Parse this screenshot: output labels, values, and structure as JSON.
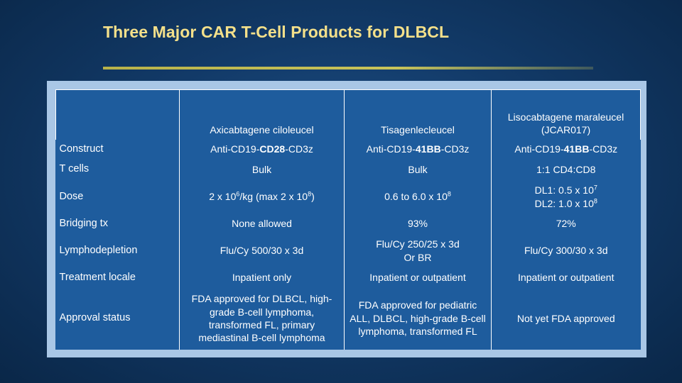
{
  "slide": {
    "title": "Three Major CAR T-Cell Products for DLBCL"
  },
  "table": {
    "columns": [
      "",
      "Axicabtagene ciloleucel",
      "Tisagenlecleucel",
      "Lisocabtagene maraleucel (JCAR017)"
    ],
    "rows": {
      "construct": {
        "label": "Construct",
        "c1_pre": "Anti-CD19-",
        "c1_bold": "CD28",
        "c1_post": "-CD3z",
        "c2_pre": "Anti-CD19-",
        "c2_bold": "41BB",
        "c2_post": "-CD3z",
        "c3_pre": "Anti-CD19-",
        "c3_bold": "41BB",
        "c3_post": "-CD3z"
      },
      "tcells": {
        "label": "T cells",
        "c1": "Bulk",
        "c2": "Bulk",
        "c3": "1:1 CD4:CD8"
      },
      "dose": {
        "label": "Dose",
        "c1_a": "2 x 10",
        "c1_a_sup": "6",
        "c1_b": "/kg (max 2 x 10",
        "c1_b_sup": "8",
        "c1_c": ")",
        "c2_a": "0.6 to 6.0 x 10",
        "c2_a_sup": "8",
        "c3_l1": "DL1: 0.5 x 10",
        "c3_l1_sup": "7",
        "c3_l2": "DL2: 1.0 x 10",
        "c3_l2_sup": "8"
      },
      "bridging": {
        "label": "Bridging tx",
        "c1": "None allowed",
        "c2": "93%",
        "c3": "72%"
      },
      "lymphodepletion": {
        "label": "Lymphodepletion",
        "c1": "Flu/Cy 500/30 x 3d",
        "c2_l1": "Flu/Cy 250/25 x 3d",
        "c2_l2": "Or BR",
        "c3": "Flu/Cy 300/30 x 3d"
      },
      "locale": {
        "label": "Treatment locale",
        "c1": "Inpatient only",
        "c2": "Inpatient or outpatient",
        "c3": "Inpatient or outpatient"
      },
      "approval": {
        "label": "Approval status",
        "c1": "FDA approved for DLBCL, high-grade B-cell lymphoma, transformed FL, primary mediastinal B-cell lymphoma",
        "c2": "FDA approved for pediatric ALL, DLBCL, high-grade B-cell lymphoma, transformed FL",
        "c3": "Not yet FDA approved"
      }
    }
  },
  "colors": {
    "title": "#f4e08a",
    "table_fill": "#1e5c9d",
    "frame": "#a9c7e6"
  }
}
